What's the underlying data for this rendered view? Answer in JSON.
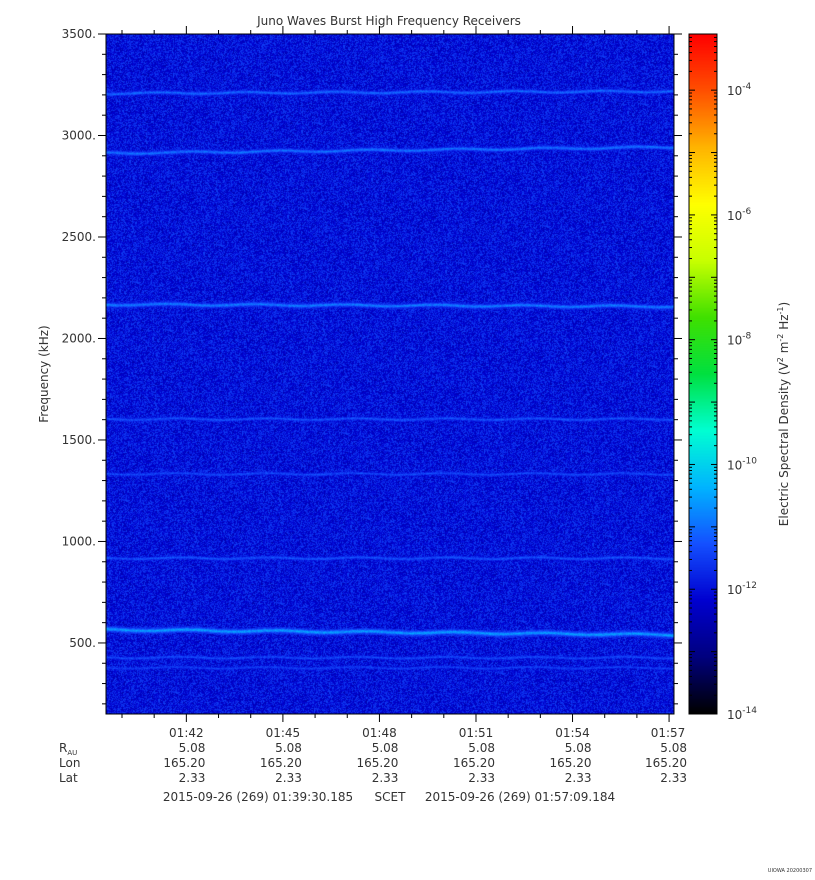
{
  "chart_data": {
    "type": "heatmap",
    "title": "Juno Waves Burst High Frequency Receivers",
    "ylabel": "Frequency (kHz)",
    "ylim": [
      150,
      3500
    ],
    "yticks": [
      500,
      1000,
      1500,
      2000,
      2500,
      3000,
      3500
    ],
    "ytick_labels": [
      "500.",
      "1000.",
      "1500.",
      "2000.",
      "2500.",
      "3000.",
      "3500."
    ],
    "xticks": [
      "01:42",
      "01:45",
      "01:48",
      "01:51",
      "01:54",
      "01:57"
    ],
    "ephemeris": [
      {
        "label": "R",
        "sub": "AU",
        "values": [
          "5.08",
          "5.08",
          "5.08",
          "5.08",
          "5.08",
          "5.08"
        ]
      },
      {
        "label": "Lon",
        "sub": "",
        "values": [
          "165.20",
          "165.20",
          "165.20",
          "165.20",
          "165.20",
          "165.20"
        ]
      },
      {
        "label": "Lat",
        "sub": "",
        "values": [
          "2.33",
          "2.33",
          "2.33",
          "2.33",
          "2.33",
          "2.33"
        ]
      }
    ],
    "time_start": "2015-09-26 (269) 01:39:30.185",
    "time_frame": "SCET",
    "time_end": "2015-09-26 (269) 01:57:09.184",
    "colorbar": {
      "label_base": "Electric Spectral Density (V",
      "label_rest": " m",
      "label_hz": " Hz",
      "label_close": ")",
      "sup_v": "2",
      "sup_m": "-2",
      "sup_hz": "-1",
      "scale": "log",
      "range": [
        -14,
        -3.1
      ],
      "tick_base": "10",
      "tick_exponents": [
        "-14",
        "-12",
        "-10",
        "-8",
        "-6",
        "-4"
      ],
      "colors": [
        "#000000",
        "#00007f",
        "#0000d0",
        "#1450ff",
        "#00b4ff",
        "#00ffd2",
        "#00e040",
        "#40e000",
        "#c8ff00",
        "#ffff00",
        "#ffb400",
        "#ff5000",
        "#ff0000"
      ]
    },
    "background_level": -12,
    "emission_bands": [
      {
        "freq": 3215,
        "level": -11.1,
        "trend": 10
      },
      {
        "freq": 2930,
        "level": -11.0,
        "trend": 30
      },
      {
        "freq": 2165,
        "level": -10.9,
        "trend": -10
      },
      {
        "freq": 1605,
        "level": -11.3,
        "trend": 0
      },
      {
        "freq": 1335,
        "level": -11.4,
        "trend": 0
      },
      {
        "freq": 920,
        "level": -11.3,
        "trend": 0
      },
      {
        "freq": 555,
        "level": -10.6,
        "trend": -25
      },
      {
        "freq": 430,
        "level": -11.4,
        "trend": 0
      },
      {
        "freq": 380,
        "level": -11.5,
        "trend": 0
      }
    ],
    "footer": "UIOWA 20200307"
  }
}
